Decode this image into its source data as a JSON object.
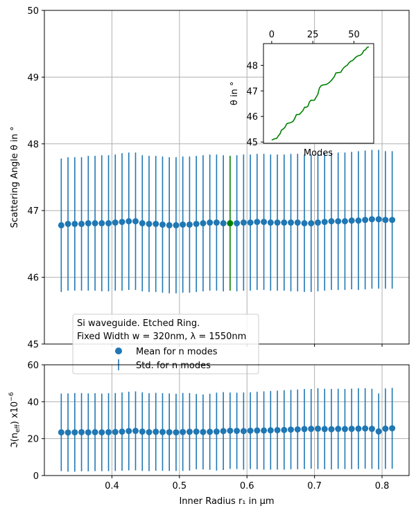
{
  "colors": {
    "series": "#1f77b4",
    "highlight": "#008000",
    "grid": "#b0b0b0",
    "axis": "#000000",
    "legend_border": "#cccccc"
  },
  "chart_data": [
    {
      "type": "scatter",
      "panel": "main",
      "ylabel": "Scattering Angle θ in °",
      "ylim": [
        45,
        50
      ],
      "xlim": [
        0.3,
        0.84
      ],
      "yticks": [
        "45",
        "46",
        "47",
        "48",
        "49",
        "50"
      ],
      "xticks": [
        "0.4",
        "0.5",
        "0.6",
        "0.7",
        "0.8"
      ],
      "grid": true,
      "x": [
        0.325,
        0.335,
        0.345,
        0.355,
        0.365,
        0.375,
        0.385,
        0.395,
        0.405,
        0.415,
        0.425,
        0.435,
        0.445,
        0.455,
        0.465,
        0.475,
        0.485,
        0.495,
        0.505,
        0.515,
        0.525,
        0.535,
        0.545,
        0.555,
        0.565,
        0.575,
        0.585,
        0.595,
        0.605,
        0.615,
        0.625,
        0.635,
        0.645,
        0.655,
        0.665,
        0.675,
        0.685,
        0.695,
        0.705,
        0.715,
        0.725,
        0.735,
        0.745,
        0.755,
        0.765,
        0.775,
        0.785,
        0.795,
        0.805,
        0.815
      ],
      "mean": [
        46.78,
        46.8,
        46.8,
        46.8,
        46.81,
        46.81,
        46.81,
        46.81,
        46.82,
        46.83,
        46.84,
        46.84,
        46.81,
        46.8,
        46.8,
        46.79,
        46.78,
        46.78,
        46.79,
        46.79,
        46.8,
        46.81,
        46.82,
        46.82,
        46.81,
        46.81,
        46.81,
        46.82,
        46.82,
        46.83,
        46.83,
        46.82,
        46.82,
        46.82,
        46.82,
        46.82,
        46.81,
        46.81,
        46.82,
        46.83,
        46.84,
        46.84,
        46.84,
        46.85,
        46.85,
        46.86,
        46.87,
        46.87,
        46.86,
        46.86
      ],
      "std": [
        1.0,
        1.0,
        1.0,
        1.0,
        1.01,
        1.01,
        1.02,
        1.02,
        1.02,
        1.03,
        1.03,
        1.03,
        1.02,
        1.02,
        1.02,
        1.02,
        1.02,
        1.02,
        1.02,
        1.02,
        1.02,
        1.02,
        1.02,
        1.02,
        1.02,
        1.01,
        1.02,
        1.02,
        1.02,
        1.02,
        1.02,
        1.02,
        1.02,
        1.02,
        1.03,
        1.03,
        1.03,
        1.03,
        1.03,
        1.03,
        1.03,
        1.03,
        1.03,
        1.03,
        1.04,
        1.04,
        1.04,
        1.04,
        1.03,
        1.03
      ],
      "highlight_index": 25,
      "legend": {
        "title_line1": "Si waveguide. Etched Ring.",
        "title_line2": "Fixed Width w = 320nm, λ = 1550nm",
        "mean_label": "Mean for n modes",
        "std_label": "Std. for n modes",
        "placement": "lower-left"
      }
    },
    {
      "type": "line",
      "panel": "inset",
      "xlabel": "Modes",
      "ylabel": "θ in °",
      "xlim": [
        -5,
        62
      ],
      "ylim": [
        44.95,
        48.85
      ],
      "xticks": [
        "0",
        "25",
        "50"
      ],
      "yticks": [
        "45",
        "46",
        "47",
        "48"
      ],
      "x": [
        0,
        2,
        3,
        4,
        5,
        6,
        7,
        8,
        9,
        10,
        11,
        12,
        13,
        14,
        15,
        16,
        17,
        18,
        19,
        20,
        21,
        22,
        23,
        24,
        25,
        26,
        27,
        28,
        29,
        30,
        31,
        32,
        33,
        34,
        35,
        36,
        37,
        38,
        39,
        40,
        41,
        42,
        43,
        44,
        45,
        46,
        47,
        48,
        49,
        50,
        51,
        52,
        53,
        54,
        55,
        56,
        57,
        58,
        59
      ],
      "y": [
        45.08,
        45.13,
        45.14,
        45.24,
        45.31,
        45.47,
        45.51,
        45.57,
        45.7,
        45.74,
        45.75,
        45.77,
        45.81,
        45.92,
        46.07,
        46.07,
        46.09,
        46.16,
        46.23,
        46.36,
        46.36,
        46.4,
        46.57,
        46.64,
        46.63,
        46.64,
        46.75,
        46.86,
        47.11,
        47.2,
        47.23,
        47.24,
        47.25,
        47.28,
        47.33,
        47.39,
        47.47,
        47.55,
        47.7,
        47.71,
        47.72,
        47.73,
        47.84,
        47.92,
        47.97,
        48.01,
        48.1,
        48.16,
        48.18,
        48.24,
        48.31,
        48.36,
        48.38,
        48.4,
        48.46,
        48.58,
        48.61,
        48.7,
        48.72
      ]
    },
    {
      "type": "scatter",
      "panel": "bottom",
      "xlabel": "Inner Radius r₁ in μm",
      "ylabel_main": "ℑ(n",
      "ylabel_sub": "eff",
      "ylabel_tail": ") x10",
      "ylabel_exp": "−6",
      "ylim": [
        0,
        60
      ],
      "xlim": [
        0.3,
        0.84
      ],
      "yticks": [
        "0",
        "20",
        "40",
        "60"
      ],
      "xticks": [
        "0.4",
        "0.5",
        "0.6",
        "0.7",
        "0.8"
      ],
      "grid": true,
      "mean": [
        23.4,
        23.3,
        23.4,
        23.5,
        23.4,
        23.5,
        23.4,
        23.5,
        23.6,
        23.8,
        24.1,
        24.2,
        23.8,
        23.5,
        23.7,
        23.6,
        23.5,
        23.4,
        23.6,
        23.7,
        23.8,
        23.6,
        23.7,
        23.8,
        24.1,
        24.3,
        24.2,
        24.1,
        24.3,
        24.4,
        24.4,
        24.5,
        24.6,
        24.7,
        24.9,
        25.0,
        25.2,
        25.3,
        25.4,
        25.2,
        25.1,
        25.3,
        25.2,
        25.3,
        25.4,
        25.5,
        25.3,
        23.9,
        25.4,
        25.6
      ],
      "std": [
        21.0,
        21.2,
        21.3,
        21.2,
        21.1,
        21.1,
        21.0,
        21.1,
        21.1,
        21.2,
        21.3,
        21.4,
        21.3,
        21.1,
        21.1,
        21.0,
        21.0,
        20.9,
        21.1,
        21.0,
        20.4,
        20.3,
        20.6,
        21.1,
        21.1,
        20.7,
        20.7,
        20.9,
        20.8,
        21.0,
        21.2,
        21.3,
        21.4,
        21.5,
        21.5,
        21.6,
        21.7,
        21.6,
        21.9,
        21.8,
        21.8,
        21.7,
        21.7,
        21.8,
        21.9,
        21.8,
        21.7,
        20.6,
        21.8,
        21.9
      ]
    }
  ]
}
